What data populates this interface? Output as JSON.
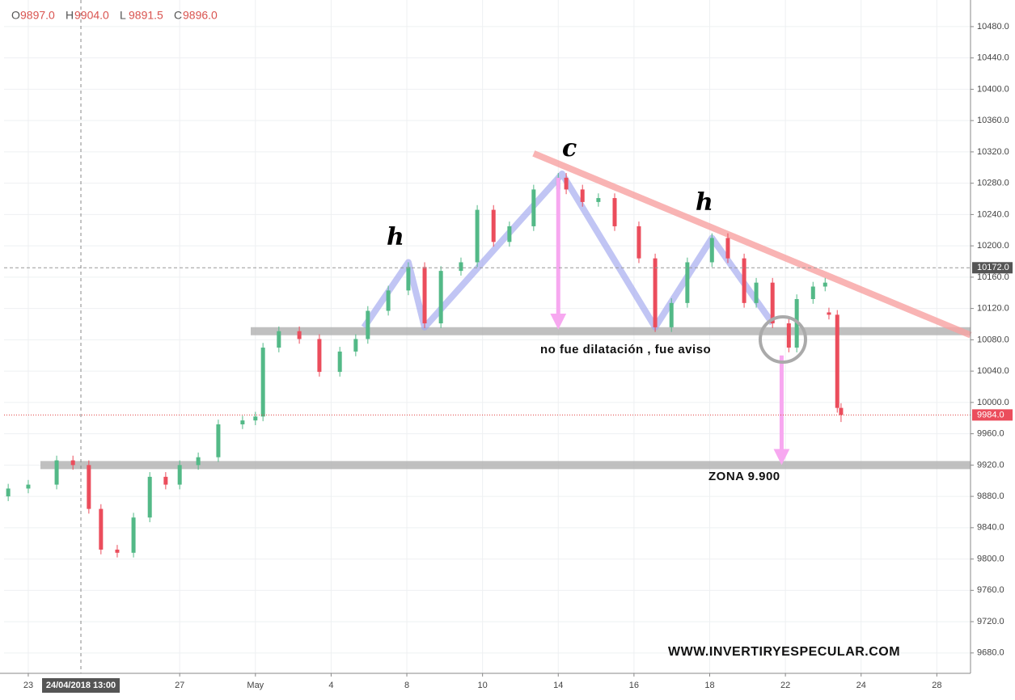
{
  "chart_data": {
    "type": "candlestick",
    "header": [
      {
        "label": "O",
        "value": "9897.0"
      },
      {
        "label": "H",
        "value": "9904.0"
      },
      {
        "label": "L",
        "value": "9891.5"
      },
      {
        "label": "C",
        "value": "9896.0"
      }
    ],
    "x": [
      -0.53,
      0,
      0.75,
      1.18,
      1.6,
      1.92,
      2.35,
      2.78,
      3.21,
      3.63,
      4.0,
      4.49,
      5.02,
      5.66,
      6.0,
      6.2,
      6.62,
      7.16,
      7.69,
      8.23,
      8.65,
      8.97,
      9.51,
      10.04,
      10.47,
      10.9,
      11.43,
      11.86,
      12.29,
      12.71,
      13.35,
      14.0,
      14.21,
      14.64,
      15.06,
      15.49,
      16.13,
      16.56,
      16.99,
      17.41,
      18.06,
      18.48,
      18.91,
      19.23,
      19.66,
      20.09,
      20.3,
      20.73,
      21.05,
      21.15,
      21.37,
      21.47
    ],
    "open": [
      9880,
      9890,
      9895,
      9926,
      9920,
      9864,
      9812,
      9808,
      9853,
      9905,
      9895,
      9920,
      9930,
      9972,
      9977,
      9982,
      10070,
      10091,
      10081,
      10039,
      10065,
      10081,
      10117,
      10143,
      10173,
      10101,
      10168,
      10179,
      10246,
      10205,
      10225,
      10272,
      10287,
      10272,
      10256,
      10261,
      10225,
      10184,
      10096,
      10127,
      10179,
      10210,
      10184,
      10127,
      10153,
      10101,
      10070,
      10132,
      10148,
      10115,
      10112,
      9993
    ],
    "high": [
      9896,
      9901,
      9932,
      9932,
      9926,
      9870,
      9818,
      9859,
      9911,
      9911,
      9926,
      9936,
      9978,
      9983,
      9988,
      10076,
      10097,
      10097,
      10087,
      10071,
      10087,
      10123,
      10149,
      10179,
      10179,
      10174,
      10185,
      10252,
      10252,
      10231,
      10278,
      10293,
      10293,
      10278,
      10267,
      10267,
      10231,
      10190,
      10133,
      10185,
      10216,
      10216,
      10190,
      10159,
      10159,
      10107,
      10138,
      10154,
      10159,
      10121,
      10118,
      9999
    ],
    "low": [
      9874,
      9884,
      9889,
      9914,
      9858,
      9806,
      9802,
      9802,
      9847,
      9889,
      9889,
      9914,
      9924,
      9966,
      9971,
      9976,
      10064,
      10075,
      10033,
      10033,
      10059,
      10075,
      10111,
      10137,
      10095,
      10095,
      10162,
      10173,
      10199,
      10199,
      10219,
      10266,
      10266,
      10250,
      10250,
      10219,
      10178,
      10090,
      10090,
      10121,
      10173,
      10178,
      10121,
      10121,
      10095,
      10064,
      10064,
      10126,
      10142,
      10106,
      9987,
      9975
    ],
    "close": [
      9890,
      9895,
      9926,
      9920,
      9864,
      9812,
      9808,
      9853,
      9905,
      9895,
      9920,
      9930,
      9972,
      9977,
      9982,
      10070,
      10091,
      10081,
      10039,
      10065,
      10081,
      10117,
      10143,
      10173,
      10101,
      10168,
      10179,
      10246,
      10205,
      10225,
      10272,
      10287,
      10272,
      10256,
      10261,
      10225,
      10184,
      10096,
      10127,
      10179,
      10210,
      10184,
      10127,
      10153,
      10101,
      10070,
      10132,
      10148,
      10153,
      10112,
      9993,
      9984
    ],
    "up_color": "#53b987",
    "down_color": "#eb4d5c",
    "xlim": [
      -0.64,
      24.89
    ],
    "xticks": [
      {
        "value": 0,
        "label": "23"
      },
      {
        "value": 4,
        "label": "27"
      },
      {
        "value": 6,
        "label": "May"
      },
      {
        "value": 8,
        "label": "4"
      },
      {
        "value": 10,
        "label": "8"
      },
      {
        "value": 12,
        "label": "10"
      },
      {
        "value": 14,
        "label": "14"
      },
      {
        "value": 16,
        "label": "16"
      },
      {
        "value": 18,
        "label": "18"
      },
      {
        "value": 20,
        "label": "22"
      },
      {
        "value": 22,
        "label": "24"
      },
      {
        "value": 24,
        "label": "28"
      }
    ],
    "ylim": [
      9654,
      10514
    ],
    "yticks": [
      {
        "value": 9680,
        "label": "9680.0"
      },
      {
        "value": 9720,
        "label": "9720.0"
      },
      {
        "value": 9760,
        "label": "9760.0"
      },
      {
        "value": 9800,
        "label": "9800.0"
      },
      {
        "value": 9840,
        "label": "9840.0"
      },
      {
        "value": 9880,
        "label": "9880.0"
      },
      {
        "value": 9920,
        "label": "9920.0"
      },
      {
        "value": 9960,
        "label": "9960.0"
      },
      {
        "value": 10000,
        "label": "10000.0"
      },
      {
        "value": 10040,
        "label": "10040.0"
      },
      {
        "value": 10080,
        "label": "10080.0"
      },
      {
        "value": 10120,
        "label": "10120.0"
      },
      {
        "value": 10160,
        "label": "10160.0"
      },
      {
        "value": 10200,
        "label": "10200.0"
      },
      {
        "value": 10240,
        "label": "10240.0"
      },
      {
        "value": 10280,
        "label": "10280.0"
      },
      {
        "value": 10320,
        "label": "10320.0"
      },
      {
        "value": 10360,
        "label": "10360.0"
      },
      {
        "value": 10400,
        "label": "10400.0"
      },
      {
        "value": 10440,
        "label": "10440.0"
      },
      {
        "value": 10480,
        "label": "10480.0"
      }
    ],
    "grid": true,
    "crosshair": {
      "x": 1.39,
      "label": "24/04/2018 13:00"
    },
    "marker_price": {
      "value": 10172,
      "label": "10172.0"
    },
    "current_price": {
      "value": 9984,
      "label": "9984.0"
    },
    "support_levels": [
      10091,
      9920
    ],
    "trendline": {
      "x": [
        13.35,
        24.89
      ],
      "y": [
        10318,
        10086
      ]
    },
    "pattern_line": {
      "x": [
        8.87,
        10.04,
        10.47,
        14.1,
        16.56,
        18.06,
        19.66
      ],
      "y": [
        10096,
        10179,
        10096,
        10292,
        10096,
        10210,
        10101
      ]
    },
    "arrows": [
      {
        "x": 14.0,
        "y": [
          10287,
          10093
        ]
      },
      {
        "x": 19.9,
        "y": [
          10060,
          9920
        ]
      }
    ],
    "annotations": [
      "h",
      "c",
      "h",
      "no fue dilatación , fue aviso",
      "ZONA 9.900",
      "WWW.INVERTIRYESPECULAR.COM"
    ]
  }
}
